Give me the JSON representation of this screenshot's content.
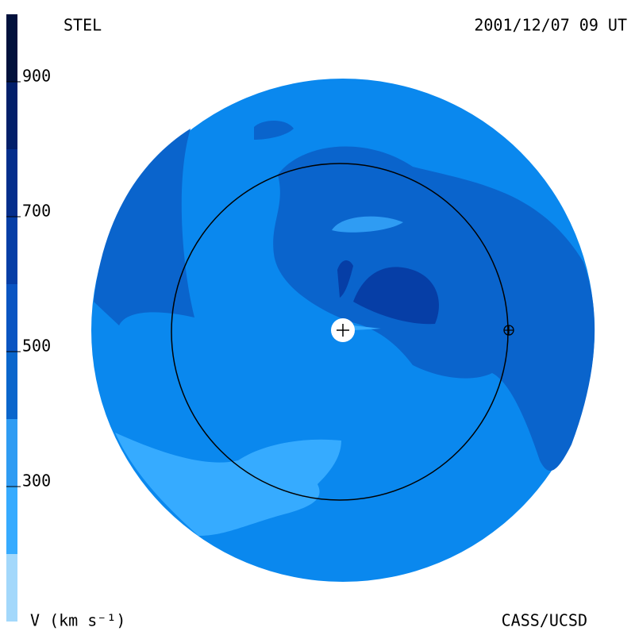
{
  "header": {
    "title": "STEL",
    "date": "2001/12/07 09 UT"
  },
  "footer": {
    "credit": "CASS/UCSD"
  },
  "colorbar": {
    "label": "V (km s⁻¹)",
    "range": [
      100,
      1000
    ],
    "ticks": [
      300,
      500,
      700,
      900
    ],
    "bands": [
      {
        "from": 100,
        "to": 200,
        "color": "#a3d8fb"
      },
      {
        "from": 200,
        "to": 300,
        "color": "#36abff"
      },
      {
        "from": 300,
        "to": 400,
        "color": "#2f9cf3"
      },
      {
        "from": 400,
        "to": 500,
        "color": "#0a66cc"
      },
      {
        "from": 500,
        "to": 600,
        "color": "#0a55c2"
      },
      {
        "from": 600,
        "to": 700,
        "color": "#063ea6"
      },
      {
        "from": 700,
        "to": 800,
        "color": "#042e8c"
      },
      {
        "from": 800,
        "to": 900,
        "color": "#021f6a"
      },
      {
        "from": 900,
        "to": 1000,
        "color": "#01113c"
      }
    ]
  }
}
